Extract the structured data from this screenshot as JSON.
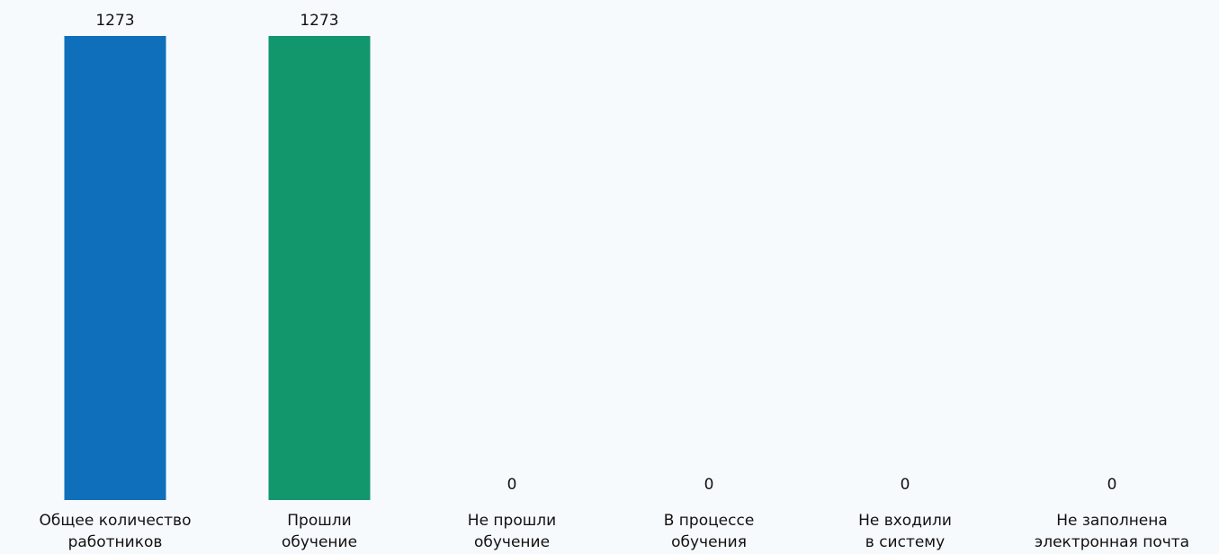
{
  "chart_data": {
    "type": "bar",
    "categories": [
      [
        "Общее количество",
        "работников"
      ],
      [
        "Прошли",
        "обучение"
      ],
      [
        "Не прошли",
        "обучение"
      ],
      [
        "В процессе",
        "обучения"
      ],
      [
        "Не входили",
        "в систему"
      ],
      [
        "Не заполнена",
        "электронная почта"
      ]
    ],
    "values": [
      1273,
      1273,
      0,
      0,
      0,
      0
    ],
    "colors": [
      "#0f6fba",
      "#12966b",
      "#12966b",
      "#12966b",
      "#12966b",
      "#12966b"
    ],
    "ylim": [
      0,
      1273
    ],
    "grid": false,
    "legend": "none"
  }
}
